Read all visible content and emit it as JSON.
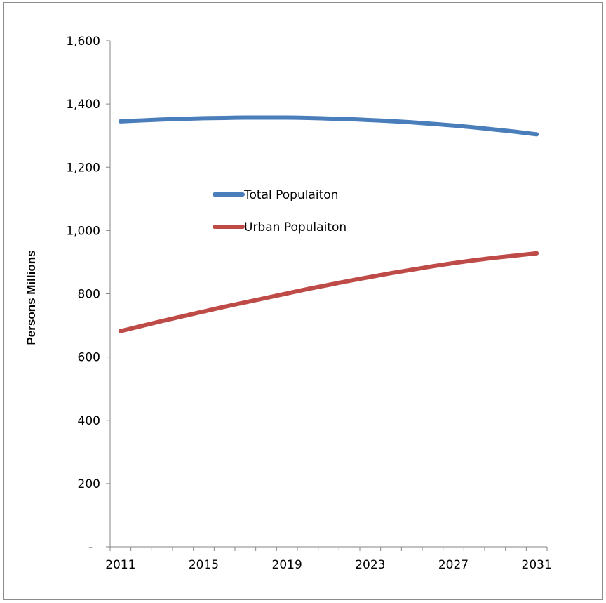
{
  "chart_data": {
    "type": "line",
    "title": "",
    "xlabel": "",
    "ylabel": "Persons Millions",
    "x": [
      2011,
      2012,
      2013,
      2014,
      2015,
      2016,
      2017,
      2018,
      2019,
      2020,
      2021,
      2022,
      2023,
      2024,
      2025,
      2026,
      2027,
      2028,
      2029,
      2030,
      2031
    ],
    "x_tick_labels": [
      "2011",
      "2015",
      "2019",
      "2023",
      "2027",
      "2031"
    ],
    "y_tick_labels": [
      "-",
      "200",
      "400",
      "600",
      "800",
      "1,000",
      "1,200",
      "1,400",
      "1,600"
    ],
    "y_ticks": [
      0,
      200,
      400,
      600,
      800,
      1000,
      1200,
      1400,
      1600
    ],
    "ylim": [
      0,
      1600
    ],
    "xlim": [
      2010.5,
      2031.5
    ],
    "grid": false,
    "legend_position": "center-left",
    "series": [
      {
        "name": "Total Populaiton",
        "color": "#4a7ebb",
        "values": [
          1345,
          1348,
          1351,
          1353,
          1355,
          1356,
          1357,
          1357,
          1357,
          1356,
          1354,
          1352,
          1349,
          1346,
          1342,
          1337,
          1332,
          1326,
          1319,
          1312,
          1304
        ]
      },
      {
        "name": "Urban Populaiton",
        "color": "#be4b48",
        "values": [
          682,
          698,
          714,
          729,
          744,
          759,
          773,
          787,
          801,
          815,
          828,
          841,
          853,
          865,
          876,
          887,
          897,
          906,
          914,
          921,
          928
        ]
      }
    ]
  }
}
